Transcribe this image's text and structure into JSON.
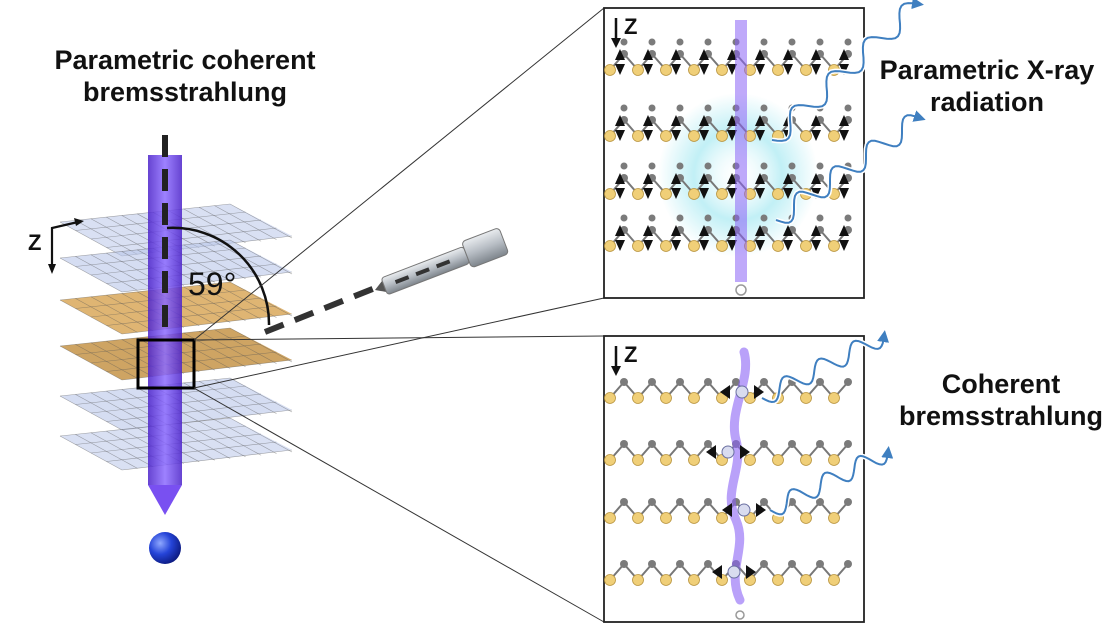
{
  "labels": {
    "title_left": [
      "Parametric coherent",
      "bremsstrahlung"
    ],
    "pxr": [
      "Parametric X-ray",
      "radiation"
    ],
    "cb": [
      "Coherent",
      "bremsstrahlung"
    ],
    "angle": "59°",
    "z_axis": "Z"
  },
  "colors": {
    "beam": "#6a3df0",
    "beam_light": "#a58af5",
    "electron": "#1f3fd6",
    "radiation_wave": "#3f7fc0",
    "atom_yellow": "#f0cf78",
    "atom_gray": "#7b7b7b",
    "crystal_blue": "#b9c7ea",
    "glow": "#9fe6ee"
  },
  "icons": {
    "detector": "x-ray-detector-icon",
    "electron": "electron-sphere-icon"
  }
}
